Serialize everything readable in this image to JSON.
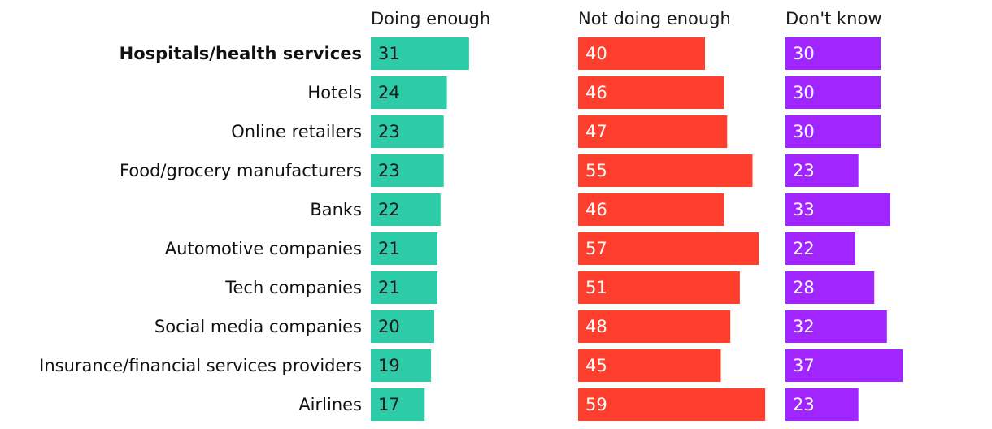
{
  "chart_data": {
    "type": "bar",
    "title": "",
    "series": [
      {
        "name": "Doing enough",
        "color": "#2ecba8",
        "value_color": "#1a1a1a",
        "values": [
          31,
          24,
          23,
          23,
          22,
          21,
          21,
          20,
          19,
          17
        ]
      },
      {
        "name": "Not doing enough",
        "color": "#ff3f2d",
        "value_color": "#ffffff",
        "values": [
          40,
          46,
          47,
          55,
          46,
          57,
          51,
          48,
          45,
          59
        ]
      },
      {
        "name": "Don't know",
        "color": "#a025ff",
        "value_color": "#ffffff",
        "values": [
          30,
          30,
          30,
          23,
          33,
          22,
          28,
          32,
          37,
          23
        ]
      }
    ],
    "categories": [
      "Hospitals/health services",
      "Hotels",
      "Online retailers",
      "Food/grocery manufacturers",
      "Banks",
      "Automotive companies",
      "Tech companies",
      "Social media companies",
      "Insurance/financial services providers",
      "Airlines"
    ],
    "highlighted_category": "Hospitals/health services",
    "grid": false,
    "legend": "column headers"
  }
}
